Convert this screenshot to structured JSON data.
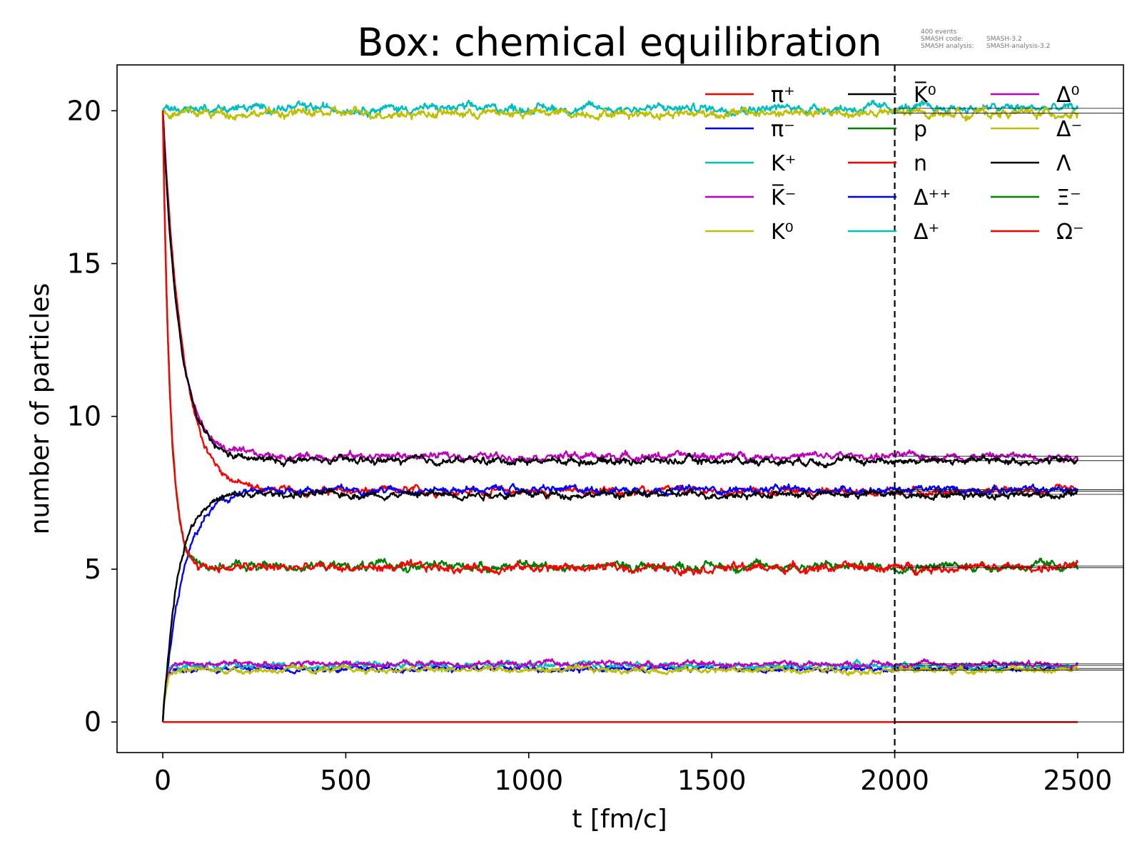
{
  "chart_data": {
    "type": "line",
    "title": "Box: chemical equilibration",
    "xlabel": "t [fm/c]",
    "ylabel": "number of particles",
    "xlim": [
      -125,
      2625
    ],
    "ylim": [
      -1,
      21.5
    ],
    "xticks": [
      0,
      500,
      1000,
      1500,
      2000,
      2500
    ],
    "yticks": [
      0,
      5,
      10,
      15,
      20
    ],
    "grid": false,
    "legend_position": "upper-right",
    "legend_columns": 3,
    "vline": {
      "x": 2000,
      "style": "dashed",
      "color": "#000000"
    },
    "annotations": [
      "400 events",
      "SMASH code:",
      "SMASH-3.2",
      "SMASH analysis:",
      "SMASH-analysis-3.2"
    ],
    "series": [
      {
        "name": "π⁺",
        "color": "#ff0000",
        "initial": 20,
        "eq": 7.55,
        "tau": 55,
        "noise": 0.1
      },
      {
        "name": "π⁻",
        "color": "#0000ff",
        "initial": 0,
        "eq": 7.6,
        "tau": 55,
        "noise": 0.1
      },
      {
        "name": "K⁺",
        "color": "#00bfbf",
        "initial": 20,
        "eq": 20.08,
        "tau": 0,
        "noise": 0.12
      },
      {
        "name": "K̅⁻",
        "color": "#bf00bf",
        "initial": 20,
        "eq": 8.7,
        "tau": 45,
        "noise": 0.1
      },
      {
        "name": "K⁰",
        "color": "#bfbf00",
        "initial": 20,
        "eq": 19.92,
        "tau": 0,
        "noise": 0.12
      },
      {
        "name": "K̅⁰",
        "color": "#000000",
        "initial": 20,
        "eq": 8.55,
        "tau": 45,
        "noise": 0.1
      },
      {
        "name": "p",
        "color": "#008000",
        "initial": 20,
        "eq": 5.1,
        "tau": 20,
        "noise": 0.12
      },
      {
        "name": "n",
        "color": "#ff0000",
        "initial": 20,
        "eq": 5.05,
        "tau": 20,
        "noise": 0.12
      },
      {
        "name": "Δ⁺⁺",
        "color": "#0000ff",
        "initial": 0,
        "eq": 1.75,
        "tau": 8,
        "noise": 0.08
      },
      {
        "name": "Δ⁺",
        "color": "#00bfbf",
        "initial": 0,
        "eq": 1.85,
        "tau": 8,
        "noise": 0.08
      },
      {
        "name": "Δ⁰",
        "color": "#bf00bf",
        "initial": 0,
        "eq": 1.9,
        "tau": 8,
        "noise": 0.08
      },
      {
        "name": "Δ⁻",
        "color": "#bfbf00",
        "initial": 0,
        "eq": 1.7,
        "tau": 8,
        "noise": 0.08
      },
      {
        "name": "Λ",
        "color": "#000000",
        "initial": 0,
        "eq": 7.45,
        "tau": 40,
        "noise": 0.1
      },
      {
        "name": "Ξ⁻",
        "color": "#008000",
        "initial": 0,
        "eq": 0,
        "tau": 0,
        "noise": 0
      },
      {
        "name": "Ω⁻",
        "color": "#ff0000",
        "initial": 0,
        "eq": 0,
        "tau": 0,
        "noise": 0
      }
    ],
    "t_range": [
      0,
      2500
    ]
  }
}
